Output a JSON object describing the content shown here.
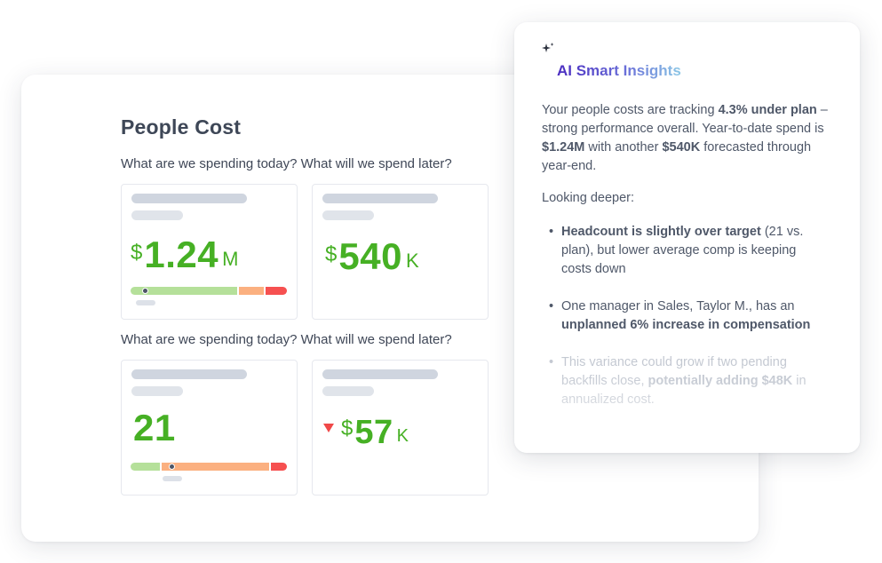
{
  "people_cost": {
    "title": "People Cost",
    "section1_question": "What are we spending today? What will we spend later?",
    "section2_question": "What are we spending today? What will we spend later?",
    "tiles": [
      {
        "currency": "$",
        "value": "1.24",
        "suffix": "M",
        "bar": {
          "segments": [
            "green",
            "orange",
            "red"
          ],
          "marker_position": 0.1
        }
      },
      {
        "currency": "$",
        "value": "540",
        "suffix": "K"
      },
      {
        "currency": "",
        "value": "21",
        "suffix": "",
        "bar": {
          "segments": [
            "green",
            "orange",
            "red"
          ],
          "marker_position": 0.27
        }
      },
      {
        "currency": "$",
        "value": "57",
        "suffix": "K",
        "trend_icon": "down-triangle-icon"
      }
    ]
  },
  "ai_insights": {
    "icon": "sparkle-icon",
    "title": "AI Smart Insights",
    "intro": {
      "p1": "Your people costs are tracking ",
      "b1": "4.3% under plan",
      "p2": " – strong performance overall. Year-to-date spend is ",
      "b2": "$1.24M",
      "p3": " with another ",
      "b3": "$540K",
      "p4": " forecasted through year-end."
    },
    "deeper_label": "Looking deeper:",
    "bullets": [
      {
        "b": "Headcount is slightly over target",
        "t": " (21 vs. plan), but lower average comp is keeping costs down"
      },
      {
        "t": "One manager in Sales, Taylor M., has an ",
        "b": "unplanned 6% increase in compensation"
      },
      {
        "t1": "This variance could grow if two pending backfills close, ",
        "b": "potentially adding $48K",
        "t2": " in annualized cost."
      }
    ]
  },
  "colors": {
    "value_green": "#46b024",
    "bar_green": "#b5e09a",
    "bar_orange": "#fbb080",
    "bar_red": "#f65050",
    "down_red": "#f04848",
    "title_gradient_start": "#4a2cc0",
    "title_gradient_end": "#8cc8e6"
  }
}
